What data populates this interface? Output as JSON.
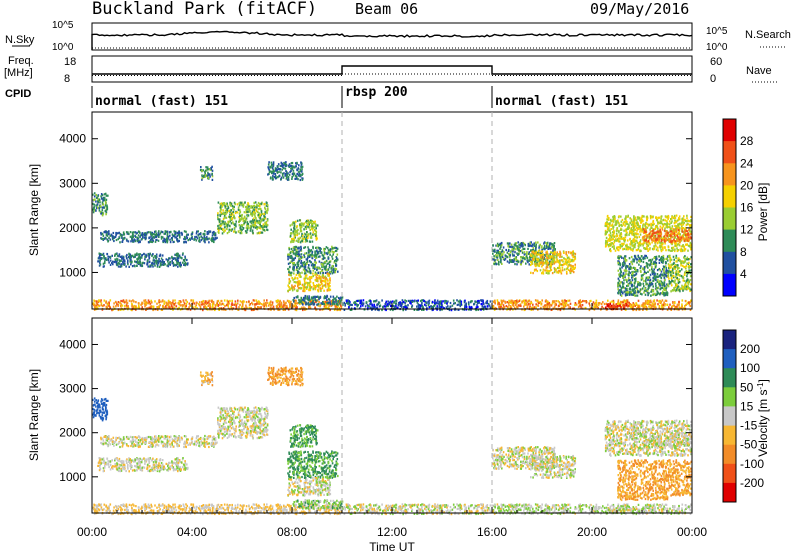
{
  "header": {
    "site": "Buckland Park (fitACF)",
    "beam": "Beam 06",
    "date": "09/May/2016"
  },
  "nsky_panel": {
    "left_label": "N.Sky",
    "left_ticks": [
      "10^5",
      "10^0"
    ],
    "right_ticks": [
      "10^5",
      "10^0"
    ],
    "right_label": "N.Search"
  },
  "freq_panel": {
    "left_label_1": "Freq.",
    "left_label_2": "[MHz]",
    "left_ticks": [
      "18",
      "8"
    ],
    "right_ticks": [
      "60",
      "0"
    ],
    "right_label": "Nave"
  },
  "cpid_panel": {
    "label": "CPID",
    "segments": [
      {
        "name": "normal (fast) 151",
        "start_hour": 0,
        "end_hour": 10
      },
      {
        "name": "rbsp 200",
        "start_hour": 10,
        "end_hour": 16
      },
      {
        "name": "normal (fast) 151",
        "start_hour": 16,
        "end_hour": 24
      }
    ]
  },
  "power_colorbar": {
    "label": "Power [dB]",
    "ticks": [
      "28",
      "24",
      "20",
      "16",
      "12",
      "8",
      "4"
    ],
    "colors": [
      "#e00000",
      "#f05018",
      "#f7941d",
      "#f5d000",
      "#9acd32",
      "#2e8b57",
      "#2050a0",
      "#0000ff"
    ]
  },
  "velocity_colorbar": {
    "label_main": "Velocity [m s",
    "label_exp": "-1",
    "label_end": "]",
    "ticks": [
      "200",
      "100",
      "50",
      "15",
      "-15",
      "-50",
      "-100",
      "-200"
    ],
    "colors": [
      "#1a237e",
      "#1f5fbf",
      "#2e8b57",
      "#7ccd3c",
      "#c8c8c8",
      "#f7b733",
      "#f28c28",
      "#f05018",
      "#e00000"
    ]
  },
  "x_axis": {
    "label": "Time UT",
    "ticks": [
      "00:00",
      "04:00",
      "08:00",
      "12:00",
      "16:00",
      "20:00",
      "00:00"
    ]
  },
  "y_axis_label": "Slant Range [km]",
  "chart_data": {
    "type": "heatmap",
    "title": "Buckland Park (fitACF) Beam 06 09/May/2016",
    "xlabel": "Time UT",
    "ylabel": "Slant Range [km]",
    "xlim_hours": [
      0,
      24
    ],
    "ylim_km": [
      180,
      4600
    ],
    "yticks_km": [
      1000,
      2000,
      3000,
      4000
    ],
    "panels": [
      "Power [dB]",
      "Velocity [m s-1]"
    ],
    "data_gap_hours": [
      10,
      16
    ],
    "scatter_regions": [
      {
        "t0": 0.0,
        "t1": 10.0,
        "r0": 180,
        "r1": 400,
        "power": 22,
        "velocity": -20
      },
      {
        "t0": 0.0,
        "t1": 0.6,
        "r0": 2300,
        "r1": 2800,
        "power": 10,
        "velocity": 150
      },
      {
        "t0": 0.3,
        "t1": 5.0,
        "r0": 1700,
        "r1": 1950,
        "power": 8,
        "velocity": 0
      },
      {
        "t0": 0.2,
        "t1": 3.8,
        "r0": 1150,
        "r1": 1450,
        "power": 8,
        "velocity": 0
      },
      {
        "t0": 5.0,
        "t1": 7.0,
        "r0": 1900,
        "r1": 2600,
        "power": 13,
        "velocity": 0
      },
      {
        "t0": 4.3,
        "t1": 4.8,
        "r0": 3100,
        "r1": 3400,
        "power": 9,
        "velocity": -40
      },
      {
        "t0": 7.0,
        "t1": 8.4,
        "r0": 3100,
        "r1": 3500,
        "power": 8,
        "velocity": -60
      },
      {
        "t0": 7.9,
        "t1": 9.0,
        "r0": 1700,
        "r1": 2200,
        "power": 14,
        "velocity": 60
      },
      {
        "t0": 7.8,
        "t1": 9.8,
        "r0": 1000,
        "r1": 1600,
        "power": 10,
        "velocity": 60
      },
      {
        "t0": 7.8,
        "t1": 9.5,
        "r0": 600,
        "r1": 1000,
        "power": 18,
        "velocity": 0
      },
      {
        "t0": 8.0,
        "t1": 10.0,
        "r0": 300,
        "r1": 500,
        "power": 8,
        "velocity": 30
      },
      {
        "t0": 10.0,
        "t1": 16.0,
        "r0": 180,
        "r1": 400,
        "power": 6,
        "velocity": 0
      },
      {
        "t0": 16.0,
        "t1": 24.0,
        "r0": 180,
        "r1": 400,
        "power": 22,
        "velocity": 10
      },
      {
        "t0": 20.5,
        "t1": 21.5,
        "r0": 200,
        "r1": 320,
        "power": 28,
        "velocity": 0
      },
      {
        "t0": 16.0,
        "t1": 18.5,
        "r0": 1200,
        "r1": 1700,
        "power": 10,
        "velocity": 0
      },
      {
        "t0": 17.5,
        "t1": 19.3,
        "r0": 1000,
        "r1": 1500,
        "power": 18,
        "velocity": 0
      },
      {
        "t0": 20.5,
        "t1": 24.0,
        "r0": 1500,
        "r1": 2300,
        "power": 16,
        "velocity": 0
      },
      {
        "t0": 22.0,
        "t1": 24.0,
        "r0": 1700,
        "r1": 2000,
        "power": 24,
        "velocity": 0
      },
      {
        "t0": 21.0,
        "t1": 23.0,
        "r0": 500,
        "r1": 1400,
        "power": 10,
        "velocity": -50
      },
      {
        "t0": 23.0,
        "t1": 24.0,
        "r0": 600,
        "r1": 1400,
        "power": 14,
        "velocity": -50
      }
    ]
  }
}
